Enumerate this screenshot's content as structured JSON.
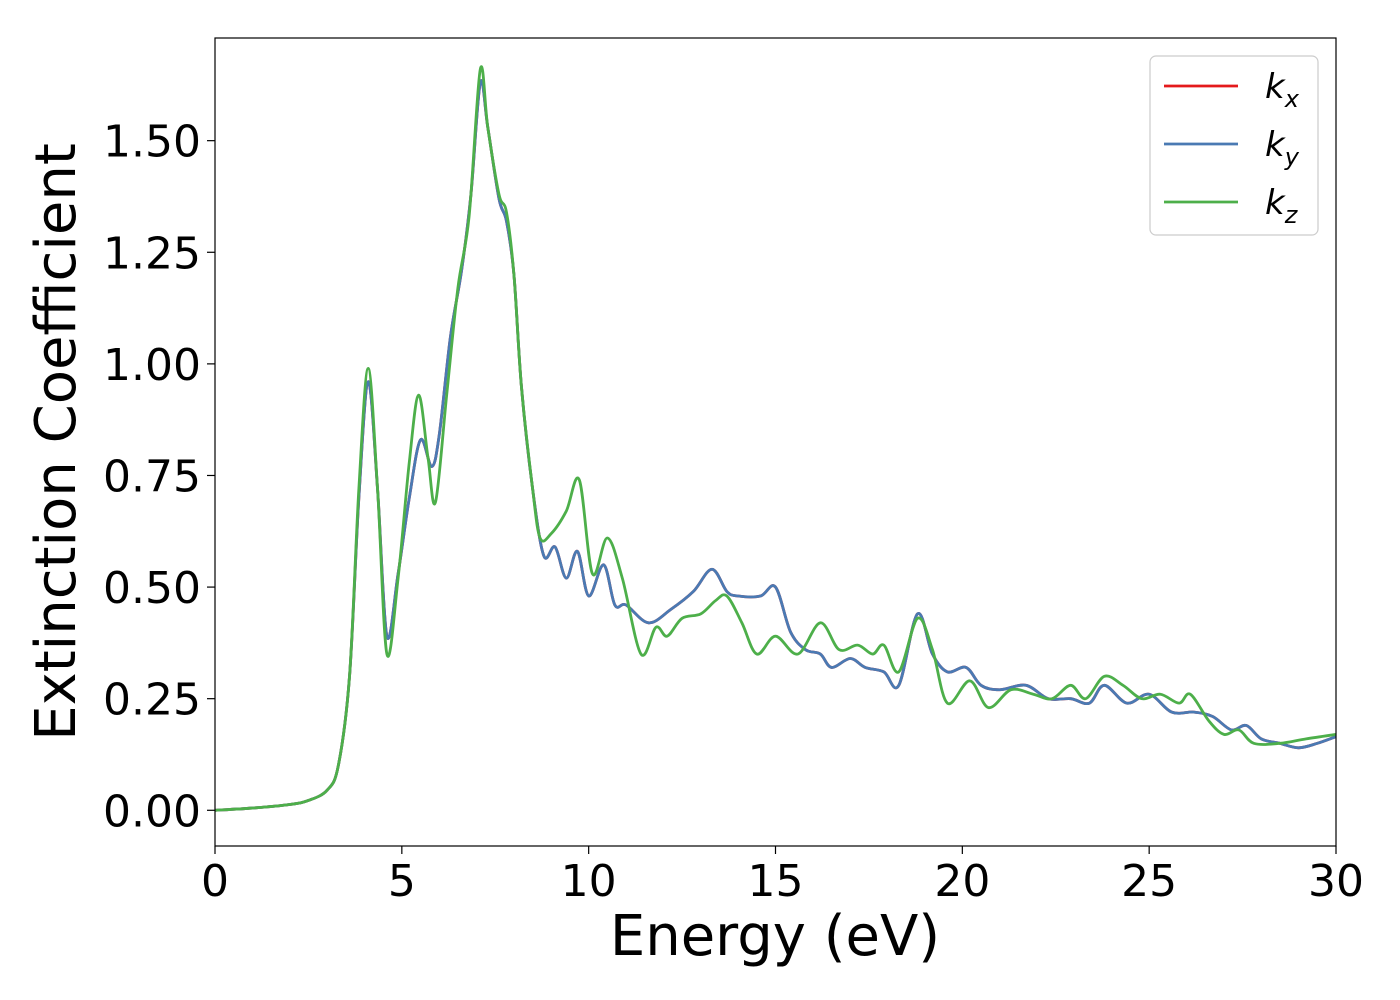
{
  "chart_data": {
    "type": "line",
    "xlabel": "Energy (eV)",
    "ylabel": "Extinction Coefficient",
    "xlim": [
      0,
      30
    ],
    "ylim": [
      -0.08,
      1.73
    ],
    "grid": false,
    "legend_position": "top-right",
    "x_ticks": [
      {
        "value": 0,
        "label": "0"
      },
      {
        "value": 5,
        "label": "5"
      },
      {
        "value": 10,
        "label": "10"
      },
      {
        "value": 15,
        "label": "15"
      },
      {
        "value": 20,
        "label": "20"
      },
      {
        "value": 25,
        "label": "25"
      },
      {
        "value": 30,
        "label": "30"
      }
    ],
    "y_ticks": [
      {
        "value": 0,
        "label": "0.00"
      },
      {
        "value": 0.25,
        "label": "0.25"
      },
      {
        "value": 0.5,
        "label": "0.50"
      },
      {
        "value": 0.75,
        "label": "0.75"
      },
      {
        "value": 1.0,
        "label": "1.00"
      },
      {
        "value": 1.25,
        "label": "1.25"
      },
      {
        "value": 1.5,
        "label": "1.50"
      }
    ],
    "series": [
      {
        "name": "k_x",
        "legend_base": "k",
        "legend_sub": "x",
        "color": "#e41a1c",
        "points": [
          [
            0,
            0
          ],
          [
            1,
            0.005
          ],
          [
            2,
            0.013
          ],
          [
            2.5,
            0.022
          ],
          [
            3,
            0.045
          ],
          [
            3.3,
            0.1
          ],
          [
            3.6,
            0.3
          ],
          [
            3.85,
            0.7
          ],
          [
            4.1,
            0.96
          ],
          [
            4.35,
            0.72
          ],
          [
            4.6,
            0.39
          ],
          [
            4.9,
            0.53
          ],
          [
            5.2,
            0.7
          ],
          [
            5.5,
            0.83
          ],
          [
            5.8,
            0.77
          ],
          [
            6.0,
            0.84
          ],
          [
            6.3,
            1.06
          ],
          [
            6.6,
            1.21
          ],
          [
            6.85,
            1.38
          ],
          [
            7.1,
            1.63
          ],
          [
            7.3,
            1.53
          ],
          [
            7.6,
            1.37
          ],
          [
            7.8,
            1.32
          ],
          [
            8.0,
            1.2
          ],
          [
            8.2,
            0.95
          ],
          [
            8.5,
            0.72
          ],
          [
            8.8,
            0.57
          ],
          [
            9.1,
            0.59
          ],
          [
            9.4,
            0.52
          ],
          [
            9.7,
            0.58
          ],
          [
            10.0,
            0.48
          ],
          [
            10.4,
            0.55
          ],
          [
            10.7,
            0.46
          ],
          [
            11.0,
            0.46
          ],
          [
            11.6,
            0.42
          ],
          [
            12.2,
            0.45
          ],
          [
            12.8,
            0.49
          ],
          [
            13.3,
            0.54
          ],
          [
            13.7,
            0.49
          ],
          [
            14.0,
            0.48
          ],
          [
            14.6,
            0.48
          ],
          [
            15.0,
            0.5
          ],
          [
            15.4,
            0.4
          ],
          [
            15.8,
            0.36
          ],
          [
            16.2,
            0.35
          ],
          [
            16.5,
            0.32
          ],
          [
            17.0,
            0.34
          ],
          [
            17.4,
            0.32
          ],
          [
            17.9,
            0.31
          ],
          [
            18.3,
            0.28
          ],
          [
            18.8,
            0.44
          ],
          [
            19.2,
            0.35
          ],
          [
            19.6,
            0.31
          ],
          [
            20.1,
            0.32
          ],
          [
            20.5,
            0.28
          ],
          [
            21.0,
            0.27
          ],
          [
            21.7,
            0.28
          ],
          [
            22.3,
            0.25
          ],
          [
            22.9,
            0.25
          ],
          [
            23.4,
            0.24
          ],
          [
            23.8,
            0.28
          ],
          [
            24.4,
            0.24
          ],
          [
            25.0,
            0.26
          ],
          [
            25.6,
            0.22
          ],
          [
            26.2,
            0.22
          ],
          [
            26.7,
            0.21
          ],
          [
            27.2,
            0.18
          ],
          [
            27.6,
            0.19
          ],
          [
            28.0,
            0.16
          ],
          [
            28.5,
            0.15
          ],
          [
            29.0,
            0.14
          ],
          [
            29.5,
            0.15
          ],
          [
            30,
            0.165
          ]
        ]
      },
      {
        "name": "k_y",
        "legend_base": "k",
        "legend_sub": "y",
        "color": "#4a7ab3",
        "points": [
          [
            0,
            0
          ],
          [
            1,
            0.005
          ],
          [
            2,
            0.013
          ],
          [
            2.5,
            0.022
          ],
          [
            3,
            0.045
          ],
          [
            3.3,
            0.1
          ],
          [
            3.6,
            0.3
          ],
          [
            3.85,
            0.7
          ],
          [
            4.1,
            0.96
          ],
          [
            4.35,
            0.72
          ],
          [
            4.6,
            0.39
          ],
          [
            4.9,
            0.53
          ],
          [
            5.2,
            0.7
          ],
          [
            5.5,
            0.83
          ],
          [
            5.8,
            0.77
          ],
          [
            6.0,
            0.84
          ],
          [
            6.3,
            1.06
          ],
          [
            6.6,
            1.21
          ],
          [
            6.85,
            1.38
          ],
          [
            7.1,
            1.63
          ],
          [
            7.3,
            1.53
          ],
          [
            7.6,
            1.37
          ],
          [
            7.8,
            1.32
          ],
          [
            8.0,
            1.2
          ],
          [
            8.2,
            0.95
          ],
          [
            8.5,
            0.72
          ],
          [
            8.8,
            0.57
          ],
          [
            9.1,
            0.59
          ],
          [
            9.4,
            0.52
          ],
          [
            9.7,
            0.58
          ],
          [
            10.0,
            0.48
          ],
          [
            10.4,
            0.55
          ],
          [
            10.7,
            0.46
          ],
          [
            11.0,
            0.46
          ],
          [
            11.6,
            0.42
          ],
          [
            12.2,
            0.45
          ],
          [
            12.8,
            0.49
          ],
          [
            13.3,
            0.54
          ],
          [
            13.7,
            0.49
          ],
          [
            14.0,
            0.48
          ],
          [
            14.6,
            0.48
          ],
          [
            15.0,
            0.5
          ],
          [
            15.4,
            0.4
          ],
          [
            15.8,
            0.36
          ],
          [
            16.2,
            0.35
          ],
          [
            16.5,
            0.32
          ],
          [
            17.0,
            0.34
          ],
          [
            17.4,
            0.32
          ],
          [
            17.9,
            0.31
          ],
          [
            18.3,
            0.28
          ],
          [
            18.8,
            0.44
          ],
          [
            19.2,
            0.35
          ],
          [
            19.6,
            0.31
          ],
          [
            20.1,
            0.32
          ],
          [
            20.5,
            0.28
          ],
          [
            21.0,
            0.27
          ],
          [
            21.7,
            0.28
          ],
          [
            22.3,
            0.25
          ],
          [
            22.9,
            0.25
          ],
          [
            23.4,
            0.24
          ],
          [
            23.8,
            0.28
          ],
          [
            24.4,
            0.24
          ],
          [
            25.0,
            0.26
          ],
          [
            25.6,
            0.22
          ],
          [
            26.2,
            0.22
          ],
          [
            26.7,
            0.21
          ],
          [
            27.2,
            0.18
          ],
          [
            27.6,
            0.19
          ],
          [
            28.0,
            0.16
          ],
          [
            28.5,
            0.15
          ],
          [
            29.0,
            0.14
          ],
          [
            29.5,
            0.15
          ],
          [
            30,
            0.165
          ]
        ]
      },
      {
        "name": "k_z",
        "legend_base": "k",
        "legend_sub": "z",
        "color": "#4daf4a",
        "points": [
          [
            0,
            0
          ],
          [
            1,
            0.005
          ],
          [
            2,
            0.013
          ],
          [
            2.5,
            0.022
          ],
          [
            3,
            0.045
          ],
          [
            3.3,
            0.1
          ],
          [
            3.6,
            0.3
          ],
          [
            3.85,
            0.72
          ],
          [
            4.1,
            0.99
          ],
          [
            4.35,
            0.72
          ],
          [
            4.6,
            0.35
          ],
          [
            4.9,
            0.52
          ],
          [
            5.2,
            0.78
          ],
          [
            5.45,
            0.93
          ],
          [
            5.7,
            0.79
          ],
          [
            5.9,
            0.69
          ],
          [
            6.2,
            0.93
          ],
          [
            6.5,
            1.17
          ],
          [
            6.8,
            1.33
          ],
          [
            7.1,
            1.66
          ],
          [
            7.3,
            1.53
          ],
          [
            7.6,
            1.38
          ],
          [
            7.8,
            1.34
          ],
          [
            8.0,
            1.2
          ],
          [
            8.2,
            0.95
          ],
          [
            8.5,
            0.72
          ],
          [
            8.7,
            0.61
          ],
          [
            9.0,
            0.62
          ],
          [
            9.4,
            0.67
          ],
          [
            9.75,
            0.74
          ],
          [
            10.1,
            0.53
          ],
          [
            10.5,
            0.61
          ],
          [
            10.9,
            0.52
          ],
          [
            11.4,
            0.35
          ],
          [
            11.8,
            0.41
          ],
          [
            12.1,
            0.39
          ],
          [
            12.5,
            0.43
          ],
          [
            13.0,
            0.44
          ],
          [
            13.4,
            0.47
          ],
          [
            13.7,
            0.48
          ],
          [
            14.1,
            0.42
          ],
          [
            14.5,
            0.35
          ],
          [
            15.0,
            0.39
          ],
          [
            15.6,
            0.35
          ],
          [
            16.2,
            0.42
          ],
          [
            16.7,
            0.36
          ],
          [
            17.2,
            0.37
          ],
          [
            17.6,
            0.35
          ],
          [
            17.9,
            0.37
          ],
          [
            18.3,
            0.31
          ],
          [
            18.8,
            0.43
          ],
          [
            19.2,
            0.36
          ],
          [
            19.6,
            0.24
          ],
          [
            20.2,
            0.29
          ],
          [
            20.7,
            0.23
          ],
          [
            21.3,
            0.27
          ],
          [
            21.9,
            0.26
          ],
          [
            22.4,
            0.25
          ],
          [
            22.9,
            0.28
          ],
          [
            23.3,
            0.25
          ],
          [
            23.8,
            0.3
          ],
          [
            24.3,
            0.28
          ],
          [
            24.8,
            0.25
          ],
          [
            25.3,
            0.26
          ],
          [
            25.8,
            0.24
          ],
          [
            26.1,
            0.26
          ],
          [
            26.6,
            0.2
          ],
          [
            27.0,
            0.17
          ],
          [
            27.4,
            0.18
          ],
          [
            27.8,
            0.15
          ],
          [
            28.5,
            0.15
          ],
          [
            29.2,
            0.16
          ],
          [
            30,
            0.17
          ]
        ]
      }
    ]
  }
}
